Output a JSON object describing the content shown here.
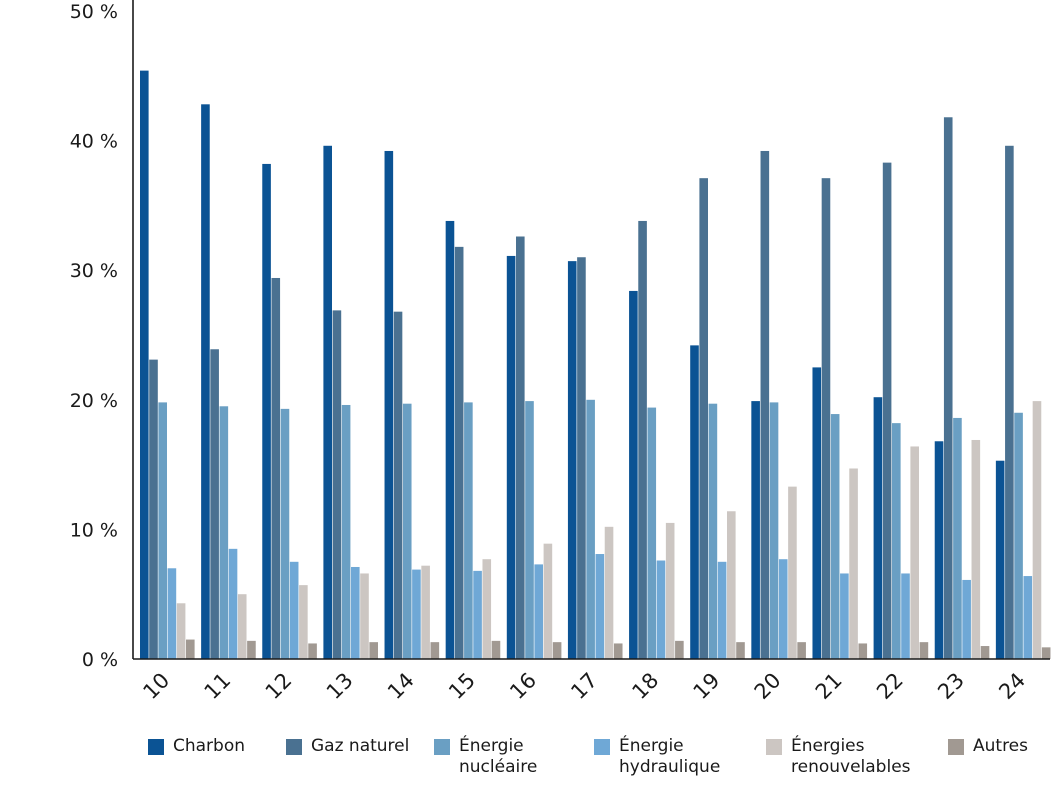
{
  "chart_data": {
    "type": "bar",
    "categories": [
      "10",
      "11",
      "12",
      "13",
      "14",
      "15",
      "16",
      "17",
      "18",
      "19",
      "20",
      "21",
      "22",
      "23",
      "24"
    ],
    "ylim": [
      0,
      50
    ],
    "yticks": [
      0,
      10,
      20,
      30,
      40,
      50
    ],
    "ytick_labels": [
      "0 %",
      "10 %",
      "20 %",
      "30 %",
      "40 %",
      "50 %"
    ],
    "grid": false,
    "legend_position": "bottom",
    "series": [
      {
        "name": "Charbon",
        "color": "#0b5394",
        "values": [
          45.4,
          42.8,
          38.2,
          39.6,
          39.2,
          33.8,
          31.1,
          30.7,
          28.4,
          24.2,
          19.9,
          22.5,
          20.2,
          16.8,
          15.3
        ]
      },
      {
        "name": "Gaz naturel",
        "color": "#4a7191",
        "values": [
          23.1,
          23.9,
          29.4,
          26.9,
          26.8,
          31.8,
          32.6,
          31.0,
          33.8,
          37.1,
          39.2,
          37.1,
          38.3,
          41.8,
          39.6
        ]
      },
      {
        "name": "Énergie\nnucléaire",
        "color": "#6a9fc3",
        "values": [
          19.8,
          19.5,
          19.3,
          19.6,
          19.7,
          19.8,
          19.9,
          20.0,
          19.4,
          19.7,
          19.8,
          18.9,
          18.2,
          18.6,
          19.0
        ]
      },
      {
        "name": "Énergie\nhydraulique",
        "color": "#6fa8d6",
        "values": [
          7.0,
          8.5,
          7.5,
          7.1,
          6.9,
          6.8,
          7.3,
          8.1,
          7.6,
          7.5,
          7.7,
          6.6,
          6.6,
          6.1,
          6.4
        ]
      },
      {
        "name": "Énergies\nrenouvelables",
        "color": "#ccc6c2",
        "values": [
          4.3,
          5.0,
          5.7,
          6.6,
          7.2,
          7.7,
          8.9,
          10.2,
          10.5,
          11.4,
          13.3,
          14.7,
          16.4,
          16.9,
          19.9
        ]
      },
      {
        "name": "Autres",
        "color": "#a19992",
        "values": [
          1.5,
          1.4,
          1.2,
          1.3,
          1.3,
          1.4,
          1.3,
          1.2,
          1.4,
          1.3,
          1.3,
          1.2,
          1.3,
          1.0,
          0.9
        ]
      }
    ]
  }
}
